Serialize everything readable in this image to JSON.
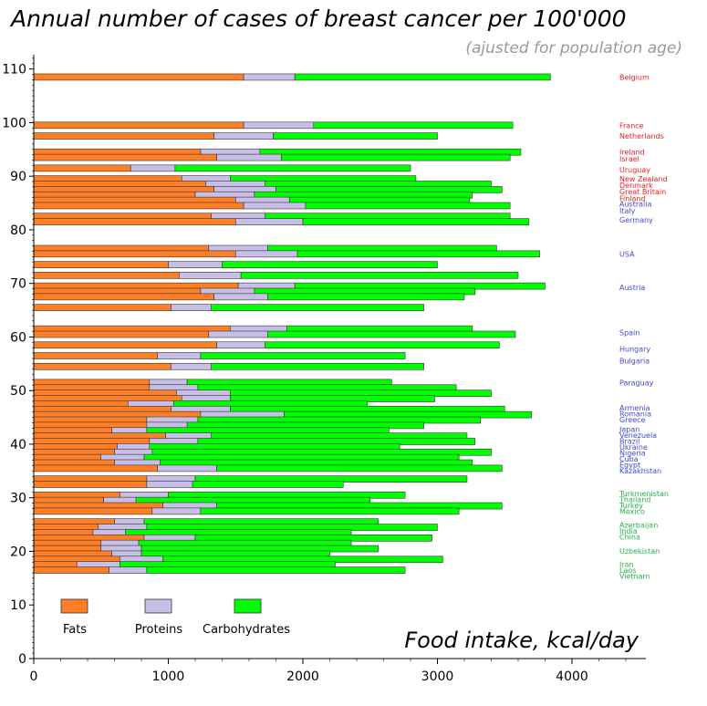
{
  "chart_data": {
    "type": "bar",
    "orientation": "horizontal-stacked",
    "title": "Annual number of cases of breast cancer per 100'000",
    "subtitle": "(ajusted for population age)",
    "xlabel": "Food intake, kcal/day",
    "ylabel": "",
    "xlim": [
      0,
      4500
    ],
    "ylim": [
      0,
      115
    ],
    "xticks": [
      0,
      1000,
      2000,
      3000,
      4000
    ],
    "yticks": [
      0,
      10,
      20,
      30,
      40,
      50,
      60,
      70,
      80,
      90,
      100,
      110
    ],
    "legend": [
      {
        "name": "Fats",
        "color": "#ff7f27"
      },
      {
        "name": "Proteins",
        "color": "#c8bfe7"
      },
      {
        "name": "Carbohydrates",
        "color": "#00ff00"
      }
    ],
    "label_colors": {
      "high": "#ed1c24",
      "medium": "#3f48cc",
      "low": "#22b14c"
    },
    "bars": [
      {
        "y": 108.5,
        "fats": 1560,
        "proteins": 380,
        "carbs": 1900
      },
      {
        "y": 99.5,
        "fats": 1560,
        "proteins": 520,
        "carbs": 1480
      },
      {
        "y": 97.5,
        "fats": 1340,
        "proteins": 440,
        "carbs": 1220
      },
      {
        "y": 94.5,
        "fats": 1240,
        "proteins": 440,
        "carbs": 1940
      },
      {
        "y": 93.5,
        "fats": 1360,
        "proteins": 480,
        "carbs": 1700
      },
      {
        "y": 91.5,
        "fats": 720,
        "proteins": 330,
        "carbs": 1750
      },
      {
        "y": 89.5,
        "fats": 1100,
        "proteins": 360,
        "carbs": 1380
      },
      {
        "y": 88.5,
        "fats": 1280,
        "proteins": 440,
        "carbs": 1680
      },
      {
        "y": 87.5,
        "fats": 1340,
        "proteins": 460,
        "carbs": 1680
      },
      {
        "y": 86.5,
        "fats": 1200,
        "proteins": 440,
        "carbs": 1620
      },
      {
        "y": 85.5,
        "fats": 1500,
        "proteins": 400,
        "carbs": 1340
      },
      {
        "y": 84.5,
        "fats": 1560,
        "proteins": 460,
        "carbs": 1520
      },
      {
        "y": 82.5,
        "fats": 1320,
        "proteins": 400,
        "carbs": 1820
      },
      {
        "y": 81.5,
        "fats": 1500,
        "proteins": 500,
        "carbs": 1680
      },
      {
        "y": 76.5,
        "fats": 1300,
        "proteins": 440,
        "carbs": 1700
      },
      {
        "y": 75.5,
        "fats": 1500,
        "proteins": 460,
        "carbs": 1800
      },
      {
        "y": 73.5,
        "fats": 1000,
        "proteins": 400,
        "carbs": 1600
      },
      {
        "y": 71.5,
        "fats": 1080,
        "proteins": 460,
        "carbs": 2060
      },
      {
        "y": 69.5,
        "fats": 1520,
        "proteins": 420,
        "carbs": 1860
      },
      {
        "y": 68.5,
        "fats": 1240,
        "proteins": 400,
        "carbs": 1640
      },
      {
        "y": 67.5,
        "fats": 1340,
        "proteins": 400,
        "carbs": 1460
      },
      {
        "y": 65.5,
        "fats": 1020,
        "proteins": 300,
        "carbs": 1580
      },
      {
        "y": 61.5,
        "fats": 1460,
        "proteins": 420,
        "carbs": 1380
      },
      {
        "y": 60.5,
        "fats": 1300,
        "proteins": 440,
        "carbs": 1840
      },
      {
        "y": 58.5,
        "fats": 1360,
        "proteins": 360,
        "carbs": 1740
      },
      {
        "y": 56.5,
        "fats": 920,
        "proteins": 320,
        "carbs": 1520
      },
      {
        "y": 54.5,
        "fats": 1020,
        "proteins": 300,
        "carbs": 1580
      },
      {
        "y": 51.5,
        "fats": 860,
        "proteins": 280,
        "carbs": 1520
      },
      {
        "y": 50.5,
        "fats": 860,
        "proteins": 360,
        "carbs": 1920
      },
      {
        "y": 49.5,
        "fats": 1060,
        "proteins": 400,
        "carbs": 1940
      },
      {
        "y": 48.5,
        "fats": 1100,
        "proteins": 360,
        "carbs": 1520
      },
      {
        "y": 47.5,
        "fats": 700,
        "proteins": 340,
        "carbs": 1440
      },
      {
        "y": 46.5,
        "fats": 1020,
        "proteins": 440,
        "carbs": 2040
      },
      {
        "y": 45.5,
        "fats": 1240,
        "proteins": 620,
        "carbs": 1840
      },
      {
        "y": 44.5,
        "fats": 840,
        "proteins": 380,
        "carbs": 2100
      },
      {
        "y": 43.5,
        "fats": 840,
        "proteins": 300,
        "carbs": 1760
      },
      {
        "y": 42.5,
        "fats": 580,
        "proteins": 260,
        "carbs": 1800
      },
      {
        "y": 41.5,
        "fats": 980,
        "proteins": 340,
        "carbs": 1900
      },
      {
        "y": 40.5,
        "fats": 860,
        "proteins": 360,
        "carbs": 2060
      },
      {
        "y": 39.5,
        "fats": 620,
        "proteins": 240,
        "carbs": 1860
      },
      {
        "y": 38.5,
        "fats": 600,
        "proteins": 280,
        "carbs": 2520
      },
      {
        "y": 37.5,
        "fats": 500,
        "proteins": 320,
        "carbs": 2340
      },
      {
        "y": 36.5,
        "fats": 600,
        "proteins": 340,
        "carbs": 2320
      },
      {
        "y": 35.5,
        "fats": 920,
        "proteins": 440,
        "carbs": 2120
      },
      {
        "y": 33.5,
        "fats": 840,
        "proteins": 360,
        "carbs": 2020
      },
      {
        "y": 32.5,
        "fats": 840,
        "proteins": 340,
        "carbs": 1120
      },
      {
        "y": 30.5,
        "fats": 640,
        "proteins": 360,
        "carbs": 1760
      },
      {
        "y": 29.5,
        "fats": 520,
        "proteins": 240,
        "carbs": 1740
      },
      {
        "y": 28.5,
        "fats": 960,
        "proteins": 400,
        "carbs": 2120
      },
      {
        "y": 27.5,
        "fats": 880,
        "proteins": 360,
        "carbs": 1920
      },
      {
        "y": 25.5,
        "fats": 600,
        "proteins": 220,
        "carbs": 1740
      },
      {
        "y": 24.5,
        "fats": 480,
        "proteins": 360,
        "carbs": 2160
      },
      {
        "y": 23.5,
        "fats": 440,
        "proteins": 240,
        "carbs": 1680
      },
      {
        "y": 22.5,
        "fats": 820,
        "proteins": 380,
        "carbs": 1760
      },
      {
        "y": 21.5,
        "fats": 500,
        "proteins": 280,
        "carbs": 1580
      },
      {
        "y": 20.5,
        "fats": 500,
        "proteins": 300,
        "carbs": 1760
      },
      {
        "y": 19.5,
        "fats": 580,
        "proteins": 220,
        "carbs": 1400
      },
      {
        "y": 18.5,
        "fats": 640,
        "proteins": 320,
        "carbs": 2080
      },
      {
        "y": 17.5,
        "fats": 320,
        "proteins": 320,
        "carbs": 1600
      },
      {
        "y": 16.5,
        "fats": 560,
        "proteins": 280,
        "carbs": 1920
      }
    ],
    "country_labels": [
      {
        "name": "Belgium",
        "y": 108.5,
        "level": "high"
      },
      {
        "name": "France",
        "y": 99.5,
        "level": "high"
      },
      {
        "name": "Netherlands",
        "y": 97.5,
        "level": "high"
      },
      {
        "name": "Ireland",
        "y": 94.5,
        "level": "high"
      },
      {
        "name": "Israel",
        "y": 93.3,
        "level": "high"
      },
      {
        "name": "Uruguay",
        "y": 91.2,
        "level": "high"
      },
      {
        "name": "New Zealand",
        "y": 89.5,
        "level": "high"
      },
      {
        "name": "Denmark",
        "y": 88.3,
        "level": "high"
      },
      {
        "name": "Great Britain",
        "y": 87.1,
        "level": "high"
      },
      {
        "name": "Finland",
        "y": 85.9,
        "level": "high"
      },
      {
        "name": "Australia",
        "y": 84.8,
        "level": "medium"
      },
      {
        "name": "Italy",
        "y": 83.6,
        "level": "medium"
      },
      {
        "name": "Germany",
        "y": 81.9,
        "level": "medium"
      },
      {
        "name": "USA",
        "y": 75.5,
        "level": "medium"
      },
      {
        "name": "Austria",
        "y": 69.3,
        "level": "medium"
      },
      {
        "name": "Spain",
        "y": 60.8,
        "level": "medium"
      },
      {
        "name": "Hungary",
        "y": 57.8,
        "level": "medium"
      },
      {
        "name": "Bulgaria",
        "y": 55.6,
        "level": "medium"
      },
      {
        "name": "Paraguay",
        "y": 51.5,
        "level": "medium"
      },
      {
        "name": "Armenia",
        "y": 46.8,
        "level": "medium"
      },
      {
        "name": "Romania",
        "y": 45.7,
        "level": "medium"
      },
      {
        "name": "Greece",
        "y": 44.6,
        "level": "medium"
      },
      {
        "name": "Japan",
        "y": 42.8,
        "level": "medium"
      },
      {
        "name": "Venezuela",
        "y": 41.7,
        "level": "medium"
      },
      {
        "name": "Brazil",
        "y": 40.6,
        "level": "medium"
      },
      {
        "name": "Ukraine",
        "y": 39.5,
        "level": "medium"
      },
      {
        "name": "Nigeria",
        "y": 38.4,
        "level": "medium"
      },
      {
        "name": "Cuba",
        "y": 37.3,
        "level": "medium"
      },
      {
        "name": "Egypt",
        "y": 36.2,
        "level": "medium"
      },
      {
        "name": "Kazakhstan",
        "y": 35.1,
        "level": "medium"
      },
      {
        "name": "Turkmenistan",
        "y": 30.8,
        "level": "low"
      },
      {
        "name": "Thailand",
        "y": 29.7,
        "level": "low"
      },
      {
        "name": "Turkey",
        "y": 28.6,
        "level": "low"
      },
      {
        "name": "Mexico",
        "y": 27.5,
        "level": "low"
      },
      {
        "name": "Azerbaijan",
        "y": 24.9,
        "level": "low"
      },
      {
        "name": "India",
        "y": 23.8,
        "level": "low"
      },
      {
        "name": "China",
        "y": 22.7,
        "level": "low"
      },
      {
        "name": "Uzbekistan",
        "y": 20.1,
        "level": "low"
      },
      {
        "name": "Iran",
        "y": 17.6,
        "level": "low"
      },
      {
        "name": "Laos",
        "y": 16.5,
        "level": "low"
      },
      {
        "name": "Vietnam",
        "y": 15.4,
        "level": "low"
      }
    ]
  }
}
